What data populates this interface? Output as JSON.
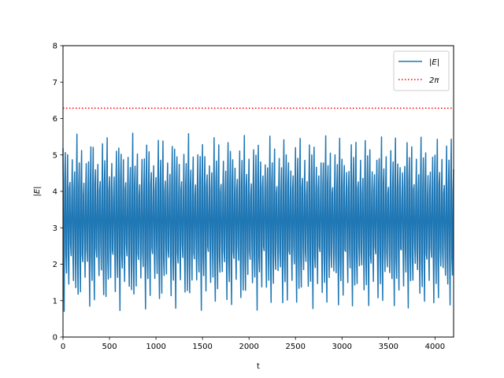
{
  "chart_data": {
    "type": "line",
    "title": "",
    "xlabel": "t",
    "ylabel": "|E|",
    "xlim": [
      0,
      4200
    ],
    "ylim": [
      0,
      8
    ],
    "xticks": [
      0,
      500,
      1000,
      1500,
      2000,
      2500,
      3000,
      3500,
      4000
    ],
    "yticks": [
      0,
      1,
      2,
      3,
      4,
      5,
      6,
      7,
      8
    ],
    "grid": false,
    "legend_position": "top-right",
    "series": [
      {
        "name": "|E|",
        "style": "solid",
        "color": "#1f77b4",
        "signal": {
          "kind": "oscillation",
          "x_start": 0,
          "x_end": 4200,
          "period": 25,
          "center": 3.2,
          "upper_peak_range": [
            4.1,
            5.6
          ],
          "lower_trough_range": [
            0.7,
            2.4
          ]
        }
      },
      {
        "name": "2π",
        "style": "dotted",
        "color": "#ff0000",
        "y": 6.283
      }
    ]
  }
}
